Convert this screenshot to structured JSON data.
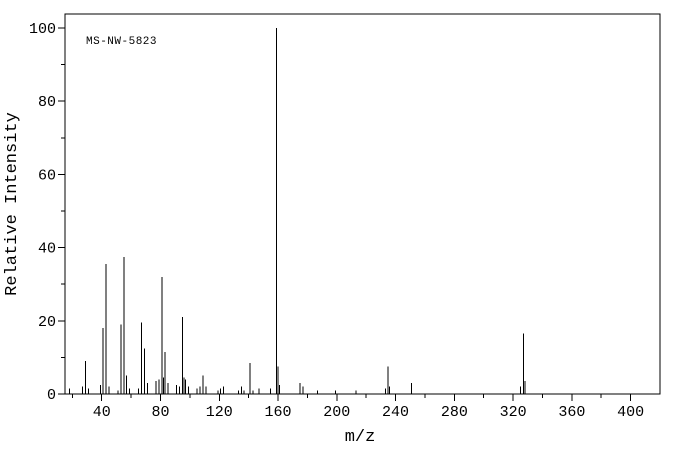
{
  "colors": {
    "foreground": "#000000",
    "background": "#ffffff"
  },
  "chart_data": {
    "type": "bar",
    "subtype": "mass-spectrum",
    "annotation": "MS-NW-5823",
    "title": "",
    "xlabel": "m/z",
    "ylabel": "Relative Intensity",
    "xlim": [
      15,
      420
    ],
    "ylim": [
      0,
      100
    ],
    "x_major_ticks": [
      40,
      80,
      120,
      160,
      200,
      240,
      280,
      320,
      360,
      400
    ],
    "x_minor_step": 20,
    "y_major_ticks": [
      0,
      20,
      40,
      60,
      80,
      100
    ],
    "y_minor_step": 10,
    "grid": false,
    "legend": false,
    "peaks": [
      [
        18,
        1.5
      ],
      [
        27,
        2
      ],
      [
        29,
        9
      ],
      [
        31,
        1.5
      ],
      [
        39,
        2.5
      ],
      [
        41,
        18
      ],
      [
        43,
        35.5
      ],
      [
        45,
        2
      ],
      [
        51,
        1
      ],
      [
        53,
        19
      ],
      [
        55,
        37.5
      ],
      [
        57,
        5
      ],
      [
        59,
        1.5
      ],
      [
        65,
        1.5
      ],
      [
        67,
        19.5
      ],
      [
        69,
        12.5
      ],
      [
        71,
        3
      ],
      [
        77,
        3.5
      ],
      [
        79,
        4
      ],
      [
        81,
        32
      ],
      [
        82,
        4.5
      ],
      [
        83,
        11.5
      ],
      [
        85,
        3
      ],
      [
        91,
        2.5
      ],
      [
        93,
        2
      ],
      [
        95,
        21
      ],
      [
        96,
        4.5
      ],
      [
        97,
        4
      ],
      [
        99,
        2
      ],
      [
        105,
        1.5
      ],
      [
        107,
        2
      ],
      [
        109,
        5
      ],
      [
        111,
        2
      ],
      [
        119,
        1
      ],
      [
        121,
        1.5
      ],
      [
        123,
        2
      ],
      [
        133,
        1
      ],
      [
        135,
        2
      ],
      [
        137,
        1
      ],
      [
        141,
        8.5
      ],
      [
        143,
        1
      ],
      [
        147,
        1.5
      ],
      [
        155,
        1.5
      ],
      [
        159,
        100
      ],
      [
        160,
        7.5
      ],
      [
        161,
        2.5
      ],
      [
        175,
        3
      ],
      [
        177,
        2
      ],
      [
        187,
        1
      ],
      [
        199,
        1
      ],
      [
        213,
        1
      ],
      [
        233,
        1.5
      ],
      [
        235,
        7.5
      ],
      [
        236,
        2
      ],
      [
        251,
        3
      ],
      [
        325,
        2
      ],
      [
        327,
        16.5
      ],
      [
        328,
        3.5
      ]
    ]
  }
}
